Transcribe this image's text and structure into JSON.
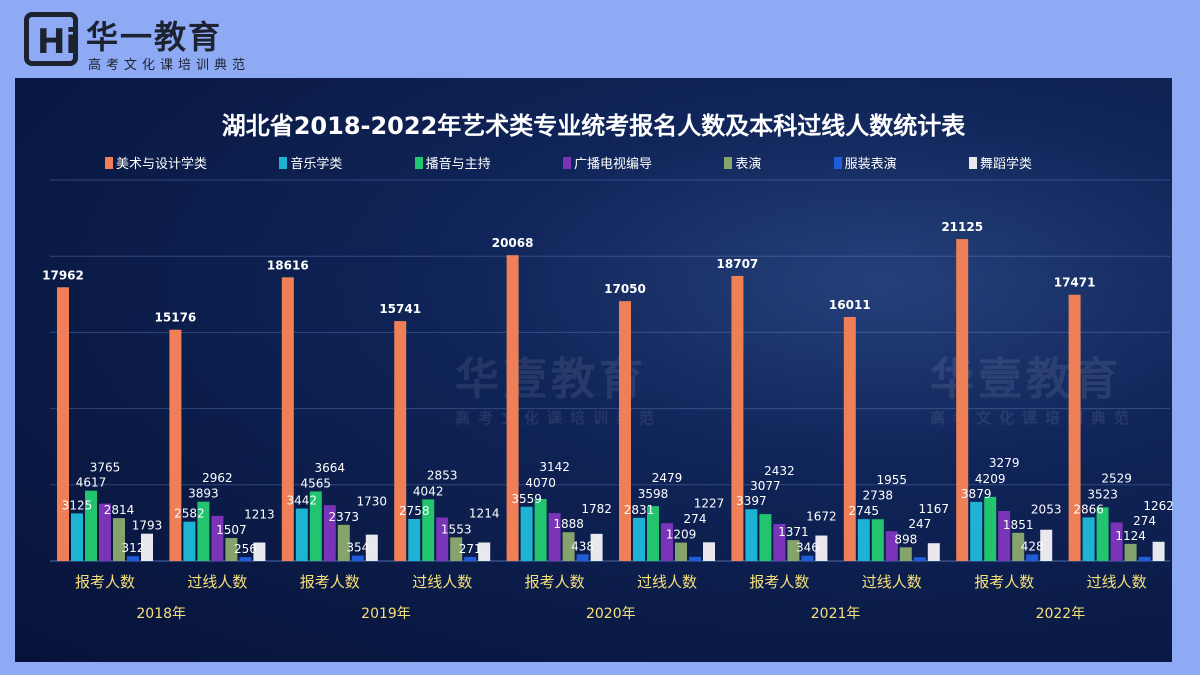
{
  "logo": {
    "name": "华一教育",
    "slogan": "高考文化课培训典范",
    "letter": "Hi"
  },
  "watermark": {
    "name": "华壹教育",
    "slogan": "高考文化课培训典范"
  },
  "chart_data": {
    "type": "bar",
    "title": "湖北省2018-2022年艺术类专业统考报名人数及本科过线人数统计表",
    "categories": [
      "报考人数",
      "过线人数",
      "报考人数",
      "过线人数",
      "报考人数",
      "过线人数",
      "报考人数",
      "过线人数",
      "报考人数",
      "过线人数"
    ],
    "years": [
      "2018年",
      "2019年",
      "2020年",
      "2021年",
      "2022年"
    ],
    "ylim": [
      0,
      25000
    ],
    "grid": true,
    "legend_position": "top",
    "series": [
      {
        "name": "美术与设计学类",
        "color": "#ee7f57",
        "values": [
          17962,
          15176,
          18616,
          15741,
          20068,
          17050,
          18707,
          16011,
          21125,
          17471
        ]
      },
      {
        "name": "音乐学类",
        "color": "#1fb3d3",
        "values": [
          3125,
          2582,
          3442,
          2758,
          3559,
          2831,
          3397,
          2745,
          3879,
          2866
        ]
      },
      {
        "name": "播音与主持",
        "color": "#22c46e",
        "values": [
          4617,
          3893,
          4565,
          4042,
          4070,
          3598,
          3077,
          2738,
          4209,
          3523
        ]
      },
      {
        "name": "广播电视编导",
        "color": "#7a34b8",
        "values": [
          3765,
          2962,
          3664,
          2853,
          3142,
          2479,
          2432,
          1955,
          3279,
          2529
        ]
      },
      {
        "name": "表演",
        "color": "#86a36e",
        "values": [
          2814,
          1507,
          2373,
          1553,
          1888,
          1209,
          1371,
          898,
          1851,
          1124
        ]
      },
      {
        "name": "服装表演",
        "color": "#1f5ed8",
        "values": [
          312,
          256,
          354,
          271,
          438,
          274,
          346,
          247,
          428,
          274
        ]
      },
      {
        "name": "舞蹈学类",
        "color": "#e8e8ee",
        "values": [
          1793,
          1213,
          1730,
          1214,
          1782,
          1227,
          1672,
          1167,
          2053,
          1262
        ]
      }
    ]
  }
}
